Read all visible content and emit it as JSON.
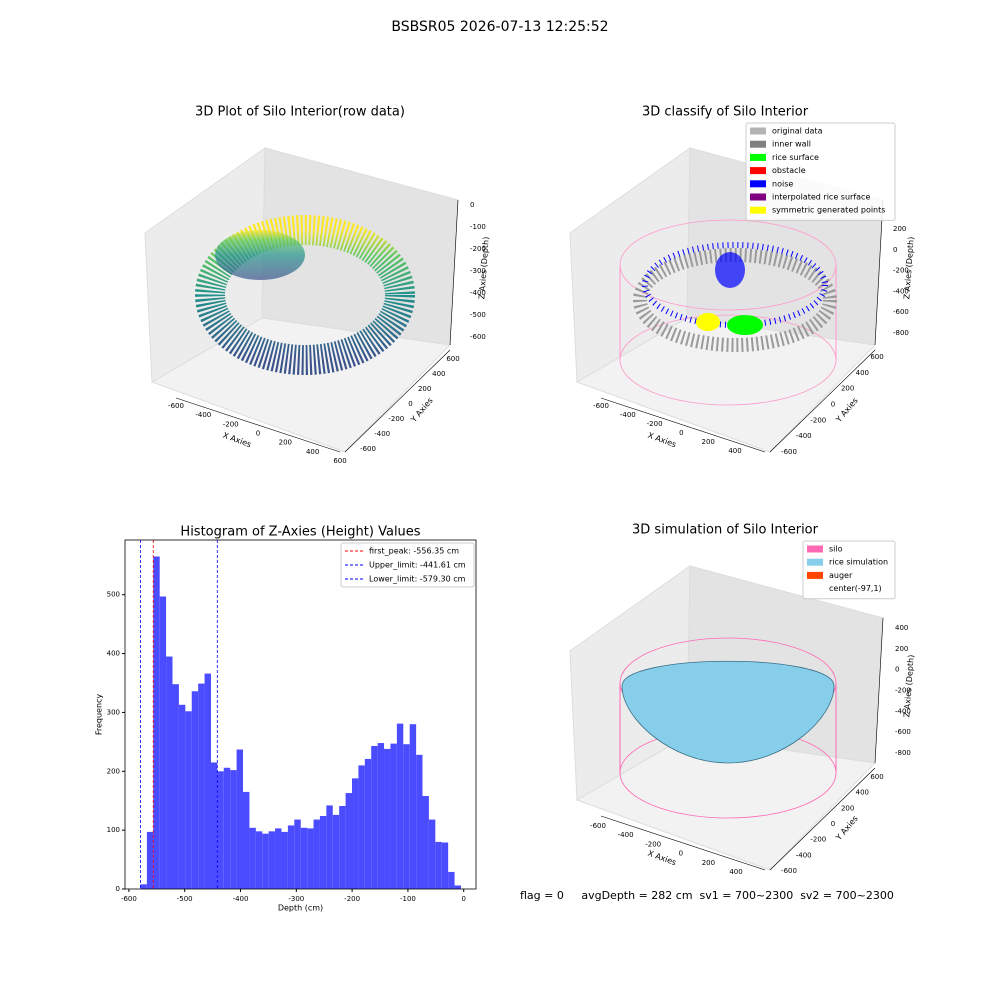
{
  "title": "BSBSR05 2026-07-13 12:25:52",
  "status": "flag = 0     avgDepth = 282 cm  sv1 = 700~2300  sv2 = 700~2300",
  "panels": [
    {
      "title": "3D Plot of Silo Interior(row data)",
      "x_label": "X Axies",
      "y_label": "Y Axies",
      "z_label": "Z Axies (Depth)",
      "xticks": [
        -600,
        -400,
        -200,
        0,
        200,
        400,
        600
      ],
      "yticks": [
        -600,
        -400,
        -200,
        0,
        200,
        400,
        600
      ],
      "zticks": [
        0,
        -100,
        -200,
        -300,
        -400,
        -500,
        -600
      ]
    },
    {
      "title": "3D classify of Silo Interior",
      "x_label": "X Axies",
      "y_label": "Y Axies",
      "z_label": "Z Axies (Depth)",
      "xticks": [
        -600,
        -400,
        -200,
        0,
        200,
        400
      ],
      "yticks": [
        -600,
        -400,
        -200,
        0,
        200,
        400,
        600
      ],
      "zticks": [
        200,
        0,
        -200,
        -400,
        -600,
        -800
      ],
      "legend": [
        {
          "name": "original data",
          "color": "#b3b3b3"
        },
        {
          "name": "inner wall",
          "color": "#808080"
        },
        {
          "name": "rice surface",
          "color": "#00ff00"
        },
        {
          "name": "obstacle",
          "color": "#ff0000"
        },
        {
          "name": "noise",
          "color": "#0000ff"
        },
        {
          "name": "interpolated rice surface",
          "color": "#800080"
        },
        {
          "name": "symmetric generated points",
          "color": "#ffff00"
        }
      ]
    },
    {
      "title": "3D simulation of Silo Interior",
      "x_label": "X Axies",
      "y_label": "Y Axies",
      "z_label": "Z Axies (Depth)",
      "xticks": [
        -600,
        -400,
        -200,
        0,
        200,
        400
      ],
      "yticks": [
        -600,
        -400,
        -200,
        0,
        200,
        400,
        600
      ],
      "zticks": [
        400,
        200,
        0,
        -200,
        -400,
        -600,
        -800
      ],
      "legend": [
        {
          "name": "silo",
          "color": "#ff69b4"
        },
        {
          "name": "rice simulation",
          "color": "#87ceeb"
        },
        {
          "name": "auger",
          "color": "#ff4500"
        },
        {
          "name": "center(-97,1)",
          "color": "#ffffff"
        }
      ]
    }
  ],
  "chart_data": {
    "type": "histogram",
    "title": "Histogram of Z-Axies (Height) Values",
    "xlabel": "Depth (cm)",
    "ylabel": "Frequency",
    "color": "#4b4bff",
    "bins": [
      -579.3,
      -567.8,
      -556.3,
      -544.8,
      -533.4,
      -521.9,
      -510.4,
      -498.9,
      -487.4,
      -475.9,
      -464.4,
      -452.9,
      -441.5,
      -430.0,
      -418.5,
      -407.0,
      -395.5,
      -384.0,
      -372.5,
      -361.0,
      -349.6,
      -338.1,
      -326.6,
      -315.1,
      -303.6,
      -292.1,
      -280.6,
      -269.1,
      -257.7,
      -246.2,
      -234.7,
      -223.2,
      -211.7,
      -200.2,
      -188.7,
      -177.2,
      -165.8,
      -154.3,
      -142.8,
      -131.3,
      -119.8,
      -108.3,
      -96.8,
      -85.3,
      -73.9,
      -62.4,
      -50.9,
      -39.4,
      -27.9,
      -16.4,
      -4.9
    ],
    "values": [
      8,
      97,
      565,
      497,
      395,
      348,
      313,
      302,
      336,
      349,
      366,
      215,
      200,
      206,
      202,
      237,
      165,
      104,
      98,
      94,
      98,
      103,
      97,
      108,
      118,
      104,
      103,
      118,
      124,
      142,
      126,
      141,
      163,
      188,
      210,
      221,
      243,
      248,
      238,
      247,
      281,
      246,
      280,
      228,
      158,
      118,
      80,
      79,
      29,
      6
    ],
    "xlim": [
      -607,
      22
    ],
    "ylim": [
      0,
      593
    ],
    "xticks": [
      -600,
      -500,
      -400,
      -300,
      -200,
      -100,
      0
    ],
    "yticks": [
      0,
      100,
      200,
      300,
      400,
      500
    ],
    "lines": [
      {
        "name": "first_peak: -556.35 cm",
        "value": -556.35,
        "color": "#ff0000"
      },
      {
        "name": "Upper_limit: -441.61 cm",
        "value": -441.61,
        "color": "#0000ff"
      },
      {
        "name": "Lower_limit: -579.30 cm",
        "value": -579.3,
        "color": "#0000ff"
      }
    ]
  }
}
